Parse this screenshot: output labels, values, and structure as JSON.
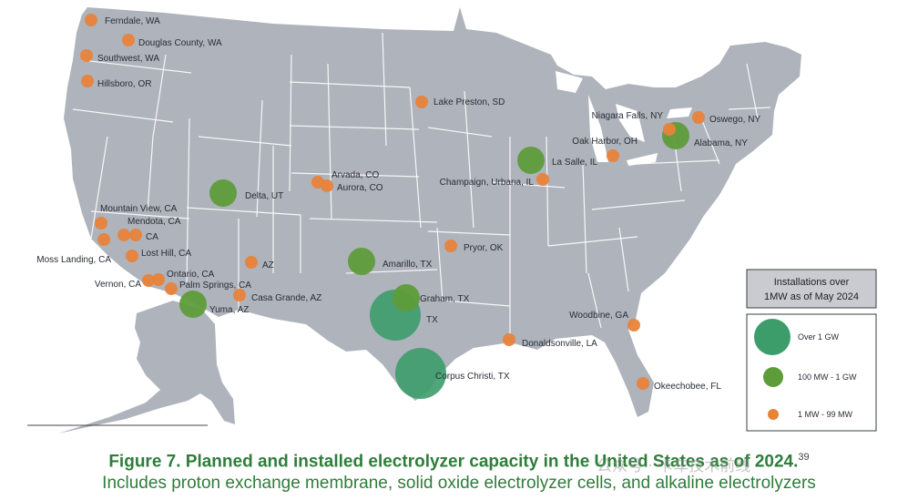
{
  "colors": {
    "land": "#aeb3bc",
    "border": "#ffffff",
    "over_1gw": "#3c9c6a",
    "mw100_1gw": "#5e9c3a",
    "mw1_99": "#e8833a",
    "caption": "#2e7d3a"
  },
  "legend": {
    "title_line1": "Installations over",
    "title_line2": "1MW as of May 2024",
    "items": [
      {
        "label": "Over 1 GW",
        "class": "over_1gw"
      },
      {
        "label": "100 MW - 1 GW",
        "class": "mw100_1gw"
      },
      {
        "label": "1 MW - 99 MW",
        "class": "mw1_99"
      }
    ]
  },
  "sites": [
    {
      "label": "Ferndale, WA",
      "class": "mw1_99"
    },
    {
      "label": "Douglas County, WA",
      "class": "mw1_99"
    },
    {
      "label": "Southwest, WA",
      "class": "mw1_99"
    },
    {
      "label": "Hillsboro, OR",
      "class": "mw1_99"
    },
    {
      "label": "Lake Preston, SD",
      "class": "mw1_99"
    },
    {
      "label": "Niagara Falls, NY",
      "class": "mw1_99"
    },
    {
      "label": "Oswego, NY",
      "class": "mw1_99"
    },
    {
      "label": "Alabama, NY",
      "class": "mw100_1gw"
    },
    {
      "label": "Oak Harbor, OH",
      "class": "mw1_99"
    },
    {
      "label": "La Salle, IL",
      "class": "mw100_1gw"
    },
    {
      "label": "Champaign, Urbana, IL",
      "class": "mw1_99"
    },
    {
      "label": "Arvada, CO",
      "class": "mw1_99"
    },
    {
      "label": "Aurora, CO",
      "class": "mw1_99"
    },
    {
      "label": "Delta, UT",
      "class": "mw100_1gw"
    },
    {
      "label": "Mountain View, CA",
      "class": "mw1_99"
    },
    {
      "label": "Mendota, CA",
      "class": "mw1_99"
    },
    {
      "label": "CA",
      "class": "mw1_99"
    },
    {
      "label": "Moss Landing, CA",
      "class": "mw1_99"
    },
    {
      "label": "Lost Hill, CA",
      "class": "mw1_99"
    },
    {
      "label": "Ontario, CA",
      "class": "mw1_99"
    },
    {
      "label": "Vernon, CA",
      "class": "mw1_99"
    },
    {
      "label": "Palm Springs, CA",
      "class": "mw1_99"
    },
    {
      "label": "Yuma, AZ",
      "class": "mw100_1gw"
    },
    {
      "label": "AZ",
      "class": "mw1_99"
    },
    {
      "label": "Casa Grande, AZ",
      "class": "mw1_99"
    },
    {
      "label": "Pryor, OK",
      "class": "mw1_99"
    },
    {
      "label": "Amarillo, TX",
      "class": "mw100_1gw"
    },
    {
      "label": "Graham, TX",
      "class": "mw100_1gw"
    },
    {
      "label": "TX",
      "class": "over_1gw"
    },
    {
      "label": "Corpus Christi, TX",
      "class": "over_1gw"
    },
    {
      "label": "Woodbine, GA",
      "class": "mw1_99"
    },
    {
      "label": "Donaldsonville, LA",
      "class": "mw1_99"
    },
    {
      "label": "Okeechobee, FL",
      "class": "mw1_99"
    }
  ],
  "caption": {
    "title": "Figure 7. Planned and installed electrolyzer capacity in the United States as of 2024.",
    "footnote": "39",
    "subtitle": "Includes proton exchange membrane, solid oxide electrolyzer cells, and alkaline electrolyzers"
  },
  "watermark": "公众号 · 卡车技术前线"
}
